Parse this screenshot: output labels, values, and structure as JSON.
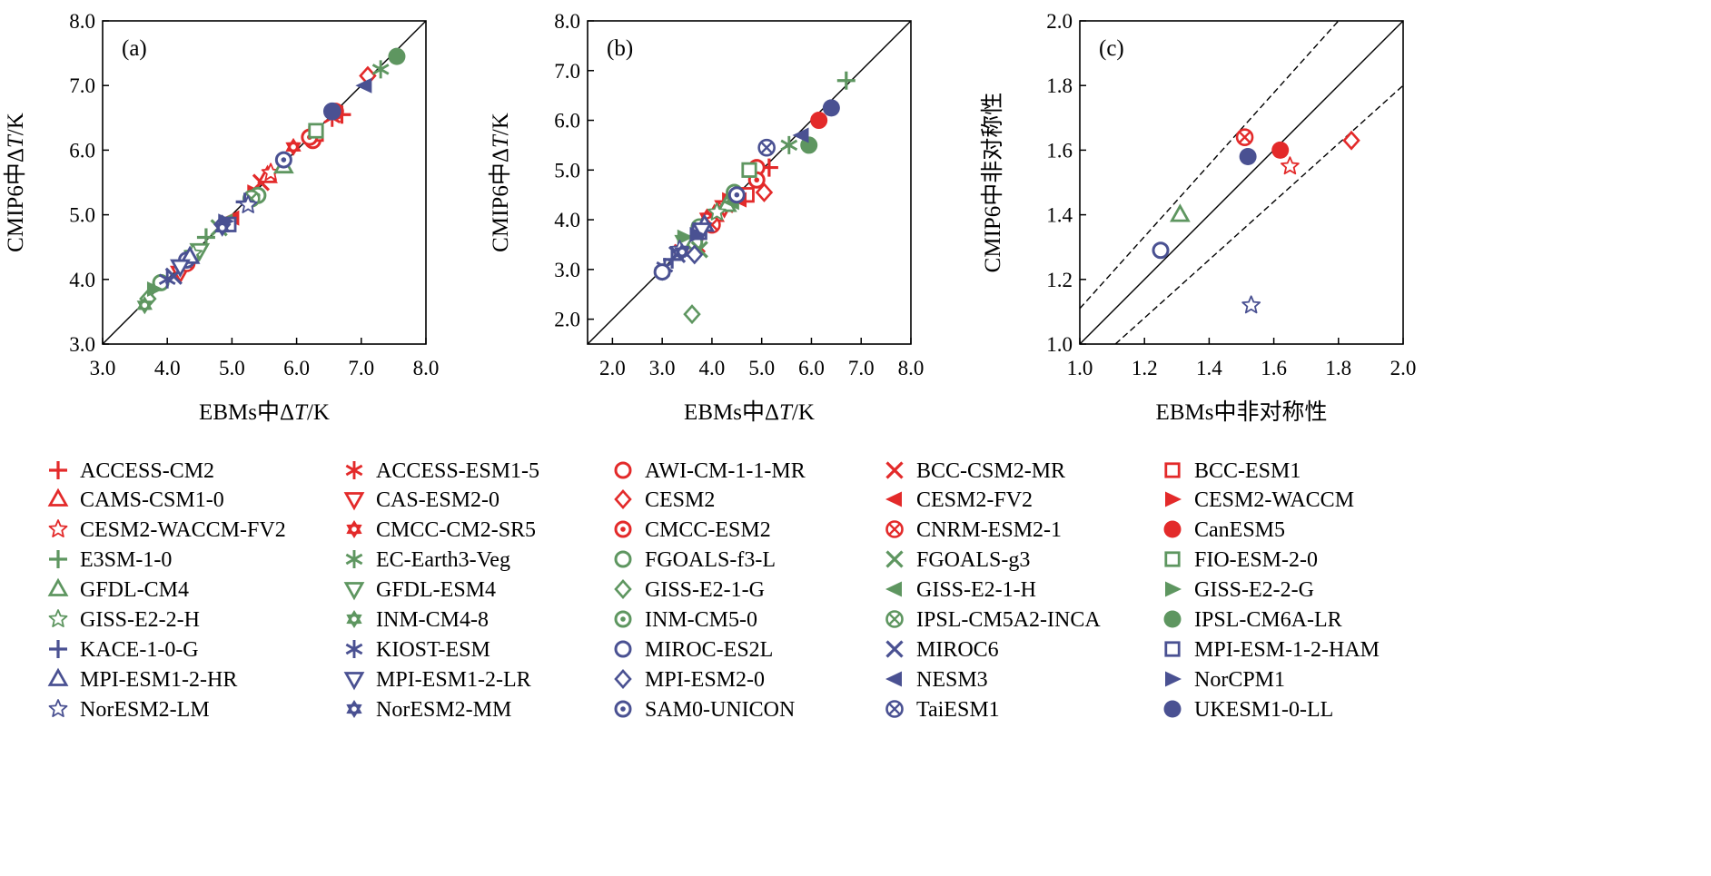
{
  "colors": {
    "red": "#e32a2a",
    "green": "#5e9660",
    "navy": "#4a5192",
    "axis": "#000000"
  },
  "legend": [
    {
      "name": "ACCESS-CM2",
      "color": "red",
      "marker": "plus"
    },
    {
      "name": "ACCESS-ESM1-5",
      "color": "red",
      "marker": "asterisk"
    },
    {
      "name": "AWI-CM-1-1-MR",
      "color": "red",
      "marker": "circle-open"
    },
    {
      "name": "BCC-CSM2-MR",
      "color": "red",
      "marker": "cross"
    },
    {
      "name": "BCC-ESM1",
      "color": "red",
      "marker": "square-open"
    },
    {
      "name": "CAMS-CSM1-0",
      "color": "red",
      "marker": "triangle-up-open"
    },
    {
      "name": "CAS-ESM2-0",
      "color": "red",
      "marker": "triangle-down-open"
    },
    {
      "name": "CESM2",
      "color": "red",
      "marker": "diamond-open"
    },
    {
      "name": "CESM2-FV2",
      "color": "red",
      "marker": "triangle-left"
    },
    {
      "name": "CESM2-WACCM",
      "color": "red",
      "marker": "triangle-right"
    },
    {
      "name": "CESM2-WACCM-FV2",
      "color": "red",
      "marker": "star"
    },
    {
      "name": "CMCC-CM2-SR5",
      "color": "red",
      "marker": "hexagram"
    },
    {
      "name": "CMCC-ESM2",
      "color": "red",
      "marker": "circle-dot"
    },
    {
      "name": "CNRM-ESM2-1",
      "color": "red",
      "marker": "circle-x"
    },
    {
      "name": "CanESM5",
      "color": "red",
      "marker": "circle-filled"
    },
    {
      "name": "E3SM-1-0",
      "color": "green",
      "marker": "plus"
    },
    {
      "name": "EC-Earth3-Veg",
      "color": "green",
      "marker": "asterisk"
    },
    {
      "name": "FGOALS-f3-L",
      "color": "green",
      "marker": "circle-open"
    },
    {
      "name": "FGOALS-g3",
      "color": "green",
      "marker": "cross"
    },
    {
      "name": "FIO-ESM-2-0",
      "color": "green",
      "marker": "square-open"
    },
    {
      "name": "GFDL-CM4",
      "color": "green",
      "marker": "triangle-up-open"
    },
    {
      "name": "GFDL-ESM4",
      "color": "green",
      "marker": "triangle-down-open"
    },
    {
      "name": "GISS-E2-1-G",
      "color": "green",
      "marker": "diamond-open"
    },
    {
      "name": "GISS-E2-1-H",
      "color": "green",
      "marker": "triangle-left"
    },
    {
      "name": "GISS-E2-2-G",
      "color": "green",
      "marker": "triangle-right"
    },
    {
      "name": "GISS-E2-2-H",
      "color": "green",
      "marker": "star"
    },
    {
      "name": "INM-CM4-8",
      "color": "green",
      "marker": "hexagram"
    },
    {
      "name": "INM-CM5-0",
      "color": "green",
      "marker": "circle-dot"
    },
    {
      "name": "IPSL-CM5A2-INCA",
      "color": "green",
      "marker": "circle-x"
    },
    {
      "name": "IPSL-CM6A-LR",
      "color": "green",
      "marker": "circle-filled"
    },
    {
      "name": "KACE-1-0-G",
      "color": "navy",
      "marker": "plus"
    },
    {
      "name": "KIOST-ESM",
      "color": "navy",
      "marker": "asterisk"
    },
    {
      "name": "MIROC-ES2L",
      "color": "navy",
      "marker": "circle-open"
    },
    {
      "name": "MIROC6",
      "color": "navy",
      "marker": "cross"
    },
    {
      "name": "MPI-ESM-1-2-HAM",
      "color": "navy",
      "marker": "square-open"
    },
    {
      "name": "MPI-ESM1-2-HR",
      "color": "navy",
      "marker": "triangle-up-open"
    },
    {
      "name": "MPI-ESM1-2-LR",
      "color": "navy",
      "marker": "triangle-down-open"
    },
    {
      "name": "MPI-ESM2-0",
      "color": "navy",
      "marker": "diamond-open"
    },
    {
      "name": "NESM3",
      "color": "navy",
      "marker": "triangle-left"
    },
    {
      "name": "NorCPM1",
      "color": "navy",
      "marker": "triangle-right"
    },
    {
      "name": "NorESM2-LM",
      "color": "navy",
      "marker": "star"
    },
    {
      "name": "NorESM2-MM",
      "color": "navy",
      "marker": "hexagram"
    },
    {
      "name": "SAM0-UNICON",
      "color": "navy",
      "marker": "circle-dot"
    },
    {
      "name": "TaiESM1",
      "color": "navy",
      "marker": "circle-x"
    },
    {
      "name": "UKESM1-0-LL",
      "color": "navy",
      "marker": "circle-filled"
    }
  ],
  "chart_data": [
    {
      "panel": "(a)",
      "type": "scatter",
      "xlabel_main": "EBMs中Δ",
      "xlabel_italic": "T",
      "xlabel_unit": "/K",
      "ylabel_main": "CMIP6中Δ",
      "ylabel_italic": "T",
      "ylabel_unit": "/K",
      "xlim": [
        3.0,
        8.0
      ],
      "ylim": [
        3.0,
        8.0
      ],
      "xticks": [
        "3.0",
        "4.0",
        "5.0",
        "6.0",
        "7.0",
        "8.0"
      ],
      "yticks": [
        "3.0",
        "4.0",
        "5.0",
        "6.0",
        "7.0",
        "8.0"
      ],
      "ref_lines": [
        {
          "style": "solid",
          "from": [
            3.0,
            3.0
          ],
          "to": [
            8.0,
            8.0
          ]
        }
      ],
      "points": [
        {
          "model": "ACCESS-CM2",
          "x": 6.7,
          "y": 6.55
        },
        {
          "model": "ACCESS-ESM1-5",
          "x": 6.55,
          "y": 6.5
        },
        {
          "model": "AWI-CM-1-1-MR",
          "x": 6.25,
          "y": 6.15
        },
        {
          "model": "BCC-CSM2-MR",
          "x": 5.45,
          "y": 5.5
        },
        {
          "model": "BCC-ESM1",
          "x": 6.3,
          "y": 6.25
        },
        {
          "model": "CAMS-CSM1-0",
          "x": 5.55,
          "y": 5.6
        },
        {
          "model": "CAS-ESM2-0",
          "x": 4.2,
          "y": 4.1
        },
        {
          "model": "CESM2",
          "x": 7.1,
          "y": 7.15
        },
        {
          "model": "CESM2-FV2",
          "x": 5.0,
          "y": 4.95
        },
        {
          "model": "CESM2-WACCM",
          "x": 5.35,
          "y": 5.35
        },
        {
          "model": "CESM2-WACCM-FV2",
          "x": 5.6,
          "y": 5.65
        },
        {
          "model": "CMCC-CM2-SR5",
          "x": 5.95,
          "y": 6.05
        },
        {
          "model": "CMCC-ESM2",
          "x": 6.2,
          "y": 6.2
        },
        {
          "model": "CNRM-ESM2-1",
          "x": 4.3,
          "y": 4.25
        },
        {
          "model": "CanESM5",
          "x": 6.6,
          "y": 6.6
        },
        {
          "model": "E3SM-1-0",
          "x": 4.6,
          "y": 4.65
        },
        {
          "model": "EC-Earth3-Veg",
          "x": 7.3,
          "y": 7.25
        },
        {
          "model": "FGOALS-f3-L",
          "x": 3.9,
          "y": 3.95
        },
        {
          "model": "FGOALS-g3",
          "x": 4.8,
          "y": 4.8
        },
        {
          "model": "FIO-ESM-2-0",
          "x": 6.3,
          "y": 6.3
        },
        {
          "model": "GFDL-CM4",
          "x": 5.8,
          "y": 5.75
        },
        {
          "model": "GFDL-ESM4",
          "x": 4.5,
          "y": 4.45
        },
        {
          "model": "GISS-E2-1-G",
          "x": 3.7,
          "y": 3.7
        },
        {
          "model": "GISS-E2-1-H",
          "x": 4.9,
          "y": 4.9
        },
        {
          "model": "GISS-E2-2-G",
          "x": 3.8,
          "y": 3.85
        },
        {
          "model": "GISS-E2-2-H",
          "x": 4.4,
          "y": 4.4
        },
        {
          "model": "INM-CM4-8",
          "x": 3.65,
          "y": 3.6
        },
        {
          "model": "INM-CM5-0",
          "x": 5.4,
          "y": 5.3
        },
        {
          "model": "IPSL-CM5A2-INCA",
          "x": 5.3,
          "y": 5.25
        },
        {
          "model": "IPSL-CM6A-LR",
          "x": 7.55,
          "y": 7.45
        },
        {
          "model": "KACE-1-0-G",
          "x": 5.2,
          "y": 5.2
        },
        {
          "model": "KIOST-ESM",
          "x": 4.0,
          "y": 4.0
        },
        {
          "model": "MIROC-ES2L",
          "x": 4.3,
          "y": 4.3
        },
        {
          "model": "MIROC6",
          "x": 4.1,
          "y": 4.05
        },
        {
          "model": "MPI-ESM-1-2-HAM",
          "x": 4.95,
          "y": 4.85
        },
        {
          "model": "MPI-ESM1-2-HR",
          "x": 4.35,
          "y": 4.35
        },
        {
          "model": "MPI-ESM1-2-LR",
          "x": 4.2,
          "y": 4.2
        },
        {
          "model": "MPI-ESM2-0",
          "x": 4.85,
          "y": 4.85
        },
        {
          "model": "NESM3",
          "x": 7.05,
          "y": 7.0
        },
        {
          "model": "NorCPM1",
          "x": 4.9,
          "y": 4.9
        },
        {
          "model": "NorESM2-LM",
          "x": 5.25,
          "y": 5.15
        },
        {
          "model": "NorESM2-MM",
          "x": 4.85,
          "y": 4.8
        },
        {
          "model": "SAM0-UNICON",
          "x": 5.8,
          "y": 5.85
        },
        {
          "model": "TaiESM1",
          "x": 6.55,
          "y": 6.6
        },
        {
          "model": "UKESM1-0-LL",
          "x": 6.55,
          "y": 6.6
        }
      ]
    },
    {
      "panel": "(b)",
      "type": "scatter",
      "xlabel_main": "EBMs中Δ",
      "xlabel_italic": "T",
      "xlabel_unit": "/K",
      "ylabel_main": "CMIP6中Δ",
      "ylabel_italic": "T",
      "ylabel_unit": "/K",
      "xlim": [
        1.5,
        8.0
      ],
      "ylim": [
        1.5,
        8.0
      ],
      "xticks": [
        "2.0",
        "3.0",
        "4.0",
        "5.0",
        "6.0",
        "7.0",
        "8.0"
      ],
      "yticks": [
        "2.0",
        "3.0",
        "4.0",
        "5.0",
        "6.0",
        "7.0",
        "8.0"
      ],
      "ref_lines": [
        {
          "style": "solid",
          "from": [
            1.5,
            1.5
          ],
          "to": [
            8.0,
            8.0
          ]
        }
      ],
      "points": [
        {
          "model": "ACCESS-CM2",
          "x": 5.15,
          "y": 5.05
        },
        {
          "model": "ACCESS-ESM1-5",
          "x": 3.4,
          "y": 3.4
        },
        {
          "model": "AWI-CM-1-1-MR",
          "x": 4.9,
          "y": 5.05
        },
        {
          "model": "BCC-CSM2-MR",
          "x": 3.7,
          "y": 3.5
        },
        {
          "model": "BCC-ESM1",
          "x": 4.7,
          "y": 4.5
        },
        {
          "model": "CAMS-CSM1-0",
          "x": 4.05,
          "y": 4.1
        },
        {
          "model": "CAS-ESM2-0",
          "x": 4.25,
          "y": 4.25
        },
        {
          "model": "CESM2",
          "x": 5.05,
          "y": 4.55
        },
        {
          "model": "CESM2-FV2",
          "x": 4.55,
          "y": 4.4
        },
        {
          "model": "CESM2-WACCM",
          "x": 4.35,
          "y": 4.4
        },
        {
          "model": "CESM2-WACCM-FV2",
          "x": 4.3,
          "y": 4.3
        },
        {
          "model": "CMCC-CM2-SR5",
          "x": 3.9,
          "y": 4.05
        },
        {
          "model": "CMCC-ESM2",
          "x": 4.9,
          "y": 4.8
        },
        {
          "model": "CNRM-ESM2-1",
          "x": 4.0,
          "y": 3.9
        },
        {
          "model": "CanESM5",
          "x": 6.15,
          "y": 6.0
        },
        {
          "model": "E3SM-1-0",
          "x": 6.7,
          "y": 6.8
        },
        {
          "model": "EC-Earth3-Veg",
          "x": 5.55,
          "y": 5.5
        },
        {
          "model": "FGOALS-f3-L",
          "x": 3.65,
          "y": 3.55
        },
        {
          "model": "FGOALS-g3",
          "x": 3.75,
          "y": 3.4
        },
        {
          "model": "FIO-ESM-2-0",
          "x": 4.75,
          "y": 5.0
        },
        {
          "model": "GFDL-CM4",
          "x": 4.3,
          "y": 4.3
        },
        {
          "model": "GFDL-ESM4",
          "x": 3.45,
          "y": 3.55
        },
        {
          "model": "GISS-E2-1-G",
          "x": 3.6,
          "y": 2.1
        },
        {
          "model": "GISS-E2-1-H",
          "x": 4.4,
          "y": 4.35
        },
        {
          "model": "GISS-E2-2-G",
          "x": 3.45,
          "y": 3.65
        },
        {
          "model": "GISS-E2-2-H",
          "x": 4.1,
          "y": 4.15
        },
        {
          "model": "INM-CM4-8",
          "x": 3.0,
          "y": 2.95
        },
        {
          "model": "INM-CM5-0",
          "x": 4.45,
          "y": 4.55
        },
        {
          "model": "IPSL-CM5A2-INCA",
          "x": 3.75,
          "y": 3.85
        },
        {
          "model": "IPSL-CM6A-LR",
          "x": 5.95,
          "y": 5.5
        },
        {
          "model": "KACE-1-0-G",
          "x": 3.2,
          "y": 3.2
        },
        {
          "model": "KIOST-ESM",
          "x": 3.05,
          "y": 3.05
        },
        {
          "model": "MIROC-ES2L",
          "x": 3.0,
          "y": 2.95
        },
        {
          "model": "MIROC6",
          "x": 3.3,
          "y": 3.3
        },
        {
          "model": "MPI-ESM-1-2-HAM",
          "x": 3.75,
          "y": 3.75
        },
        {
          "model": "MPI-ESM1-2-HR",
          "x": 3.85,
          "y": 3.9
        },
        {
          "model": "MPI-ESM1-2-LR",
          "x": 3.8,
          "y": 3.8
        },
        {
          "model": "MPI-ESM2-0",
          "x": 3.65,
          "y": 3.3
        },
        {
          "model": "NESM3",
          "x": 5.8,
          "y": 5.7
        },
        {
          "model": "NorCPM1",
          "x": 3.7,
          "y": 3.7
        },
        {
          "model": "NorESM2-LM",
          "x": 3.35,
          "y": 3.4
        },
        {
          "model": "NorESM2-MM",
          "x": 3.4,
          "y": 3.35
        },
        {
          "model": "SAM0-UNICON",
          "x": 4.5,
          "y": 4.5
        },
        {
          "model": "TaiESM1",
          "x": 5.1,
          "y": 5.45
        },
        {
          "model": "UKESM1-0-LL",
          "x": 6.4,
          "y": 6.25
        }
      ]
    },
    {
      "panel": "(c)",
      "type": "scatter",
      "xlabel_main": "EBMs中非对称性",
      "xlabel_italic": "",
      "xlabel_unit": "",
      "ylabel_main": "CMIP6中非对称性",
      "ylabel_italic": "",
      "ylabel_unit": "",
      "xlim": [
        1.0,
        2.0
      ],
      "ylim": [
        1.0,
        2.0
      ],
      "xticks": [
        "1.0",
        "1.2",
        "1.4",
        "1.6",
        "1.8",
        "2.0"
      ],
      "yticks": [
        "1.0",
        "1.2",
        "1.4",
        "1.6",
        "1.8",
        "2.0"
      ],
      "ref_lines": [
        {
          "style": "solid",
          "from": [
            1.0,
            1.0
          ],
          "to": [
            2.0,
            2.0
          ]
        },
        {
          "style": "dashed",
          "from": [
            1.0,
            1.11
          ],
          "to": [
            1.8,
            2.0
          ]
        },
        {
          "style": "dashed",
          "from": [
            1.11,
            1.0
          ],
          "to": [
            2.0,
            1.8
          ]
        }
      ],
      "points": [
        {
          "model": "CESM2",
          "x": 1.84,
          "y": 1.63
        },
        {
          "model": "CESM2-WACCM-FV2",
          "x": 1.65,
          "y": 1.55
        },
        {
          "model": "CanESM5",
          "x": 1.62,
          "y": 1.6
        },
        {
          "model": "CNRM-ESM2-1",
          "x": 1.51,
          "y": 1.64
        },
        {
          "model": "UKESM1-0-LL",
          "x": 1.52,
          "y": 1.58
        },
        {
          "model": "GFDL-CM4",
          "x": 1.31,
          "y": 1.4
        },
        {
          "model": "MIROC-ES2L",
          "x": 1.25,
          "y": 1.29
        },
        {
          "model": "NorESM2-LM",
          "x": 1.53,
          "y": 1.12
        }
      ]
    }
  ]
}
